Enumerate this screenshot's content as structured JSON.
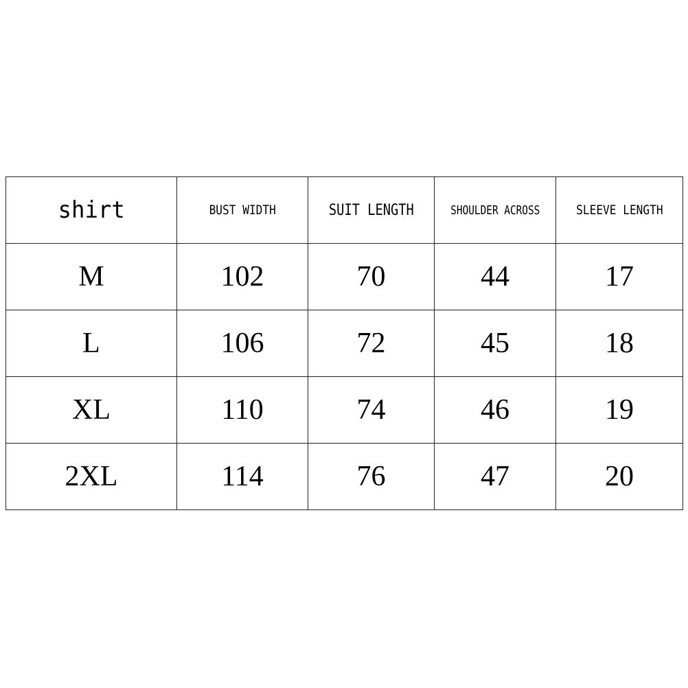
{
  "table": {
    "headers": [
      "shirt",
      "BUST WIDTH",
      "SUIT LENGTH",
      "SHOULDER ACROSS",
      "SLEEVE LENGTH"
    ],
    "rows": [
      [
        "M",
        "102",
        "70",
        "44",
        "17"
      ],
      [
        "L",
        "106",
        "72",
        "45",
        "18"
      ],
      [
        "XL",
        "110",
        "74",
        "46",
        "19"
      ],
      [
        "2XL",
        "114",
        "76",
        "47",
        "20"
      ]
    ]
  }
}
